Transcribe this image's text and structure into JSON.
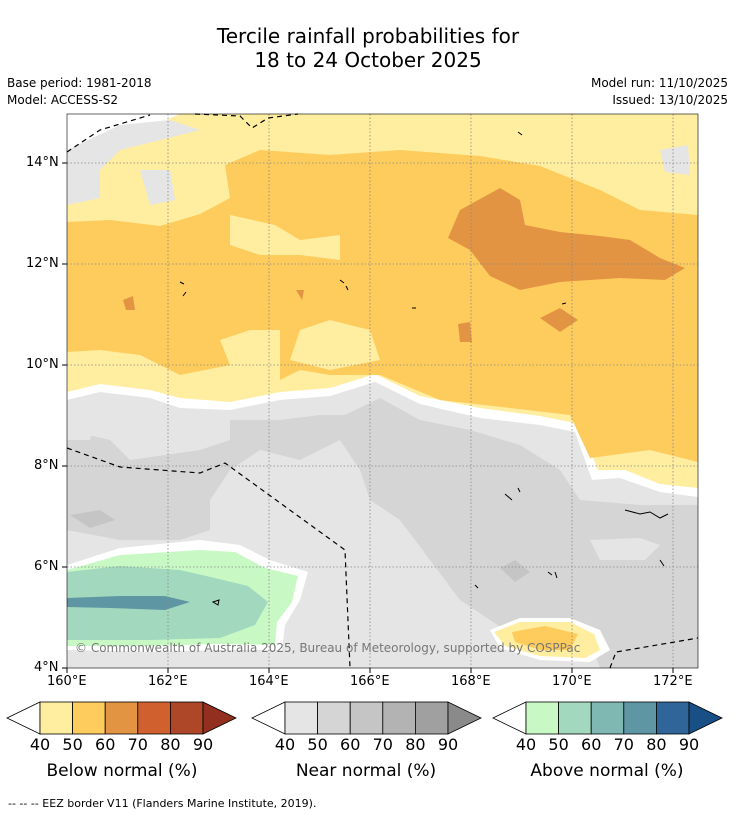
{
  "title": {
    "line1": "Tercile rainfall probabilities for",
    "line2": "18 to 24 October 2025"
  },
  "meta": {
    "base_period": "Base period: 1981-2018",
    "model": "Model: ACCESS-S2",
    "model_run": "Model run: 11/10/2025",
    "issued": "Issued: 13/10/2025"
  },
  "map": {
    "lat_labels": [
      "14°N",
      "12°N",
      "10°N",
      "8°N",
      "6°N",
      "4°N"
    ],
    "lon_labels": [
      "160°E",
      "162°E",
      "164°E",
      "166°E",
      "168°E",
      "170°E",
      "172°E"
    ],
    "copyright": "© Commonwealth of Australia 2025, Bureau of Meteorology, supported by COSPPac"
  },
  "colorbars": [
    {
      "title": "Below normal (%)",
      "ticks": [
        "40",
        "50",
        "60",
        "70",
        "80",
        "90"
      ],
      "colors": [
        "#FFEDA0",
        "#FECC5C",
        "#E39443",
        "#D0612F",
        "#AE4628",
        "#922F1E"
      ]
    },
    {
      "title": "Near normal (%)",
      "ticks": [
        "40",
        "50",
        "60",
        "70",
        "80",
        "90"
      ],
      "colors": [
        "#E5E5E5",
        "#D5D5D5",
        "#C5C5C5",
        "#B3B3B3",
        "#A0A0A0",
        "#8A8A8A"
      ]
    },
    {
      "title": "Above normal (%)",
      "ticks": [
        "40",
        "50",
        "60",
        "70",
        "80",
        "90"
      ],
      "colors": [
        "#C8F9C5",
        "#A2D8BD",
        "#7FB7B2",
        "#5F96A4",
        "#2F6598",
        "#184F84"
      ]
    }
  ],
  "legend_note": "--  --  -- EEZ border V11 (Flanders Marine Institute, 2019)."
}
